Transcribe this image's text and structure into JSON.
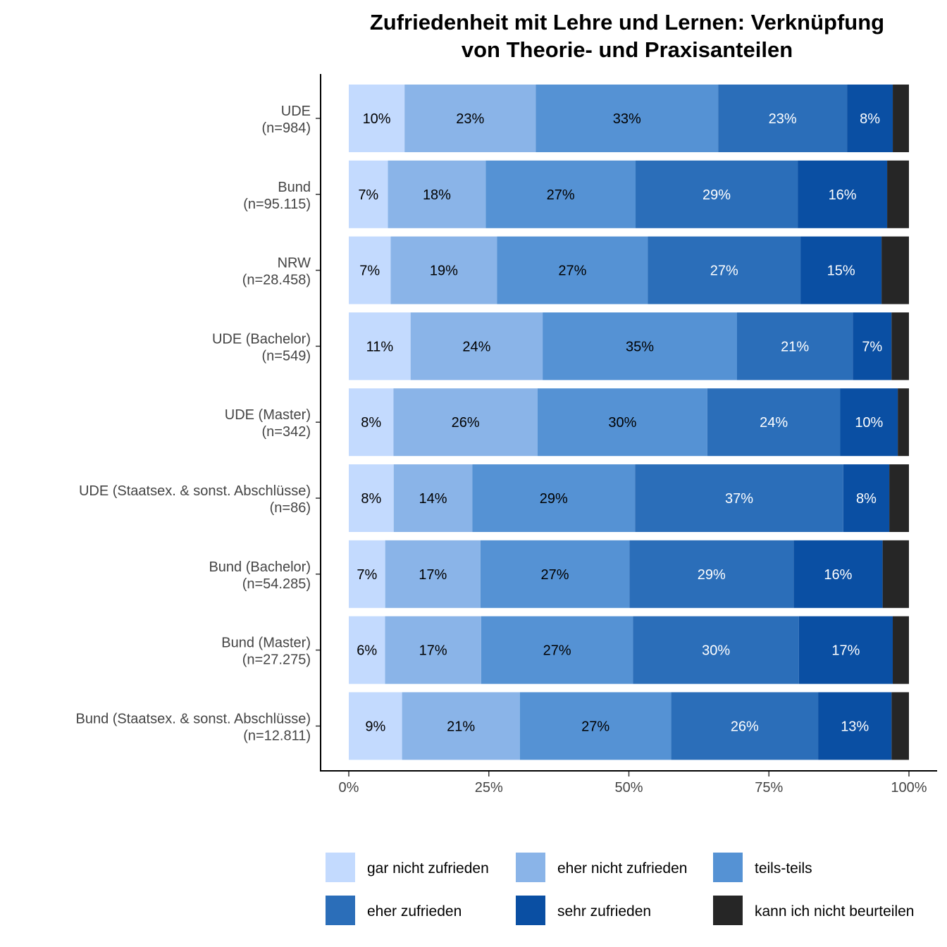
{
  "chart_data": {
    "type": "bar",
    "orientation": "horizontal",
    "stacked": true,
    "title_lines": [
      "Zufriedenheit mit Lehre und Lernen: Verknüpfung",
      "von Theorie- und Praxisanteilen"
    ],
    "xlabel": "",
    "ylabel": "",
    "xlim": [
      0,
      100
    ],
    "x_ticks": [
      "0%",
      "25%",
      "50%",
      "75%",
      "100%"
    ],
    "grid": false,
    "legend_position": "bottom",
    "categories": [
      {
        "name": "UDE",
        "n": "(n=984)"
      },
      {
        "name": "Bund",
        "n": "(n=95.115)"
      },
      {
        "name": "NRW",
        "n": "(n=28.458)"
      },
      {
        "name": "UDE (Bachelor)",
        "n": "(n=549)"
      },
      {
        "name": "UDE (Master)",
        "n": "(n=342)"
      },
      {
        "name": "UDE (Staatsex. & sonst. Abschlüsse)",
        "n": "(n=86)"
      },
      {
        "name": "Bund (Bachelor)",
        "n": "(n=54.285)"
      },
      {
        "name": "Bund (Master)",
        "n": "(n=27.275)"
      },
      {
        "name": "Bund (Staatsex. & sonst. Abschlüsse)",
        "n": "(n=12.811)"
      }
    ],
    "series": [
      {
        "name": "gar nicht zufrieden",
        "color": "#c3dafe",
        "label_color": "#000000",
        "values": [
          10,
          7,
          7.5,
          11,
          8,
          8,
          6.5,
          6.5,
          9.5
        ],
        "labels": [
          "10%",
          "7%",
          "7%",
          "11%",
          "8%",
          "8%",
          "7%",
          "6%",
          "9%"
        ]
      },
      {
        "name": "eher nicht zufrieden",
        "color": "#8ab4e8",
        "label_color": "#000000",
        "values": [
          23.5,
          17.5,
          19,
          23.5,
          25.8,
          14,
          17,
          17.2,
          21
        ],
        "labels": [
          "23%",
          "18%",
          "19%",
          "24%",
          "26%",
          "14%",
          "17%",
          "17%",
          "21%"
        ]
      },
      {
        "name": "teils-teils",
        "color": "#5592d4",
        "label_color": "#000000",
        "values": [
          32.7,
          26.8,
          27,
          34.6,
          30.4,
          29,
          26.6,
          27.2,
          27
        ],
        "labels": [
          "33%",
          "27%",
          "27%",
          "35%",
          "30%",
          "29%",
          "27%",
          "27%",
          "27%"
        ]
      },
      {
        "name": "eher zufrieden",
        "color": "#2b6eb9",
        "label_color": "#ffffff",
        "values": [
          23.1,
          29,
          27.3,
          20.6,
          23.8,
          37.1,
          29.3,
          29.7,
          26.2
        ],
        "labels": [
          "23%",
          "29%",
          "27%",
          "21%",
          "24%",
          "37%",
          "29%",
          "30%",
          "26%"
        ]
      },
      {
        "name": "sehr zufrieden",
        "color": "#0a4fa3",
        "label_color": "#ffffff",
        "values": [
          8.2,
          16,
          14.5,
          6.9,
          10.3,
          8.2,
          15.9,
          16.8,
          13.1
        ],
        "labels": [
          "8%",
          "16%",
          "15%",
          "7%",
          "10%",
          "8%",
          "16%",
          "17%",
          "13%"
        ]
      },
      {
        "name": "kann ich nicht beurteilen",
        "color": "#262626",
        "label_color": "#ffffff",
        "values": [
          2.9,
          3.9,
          4.9,
          3.1,
          2.0,
          3.5,
          4.7,
          2.9,
          3.1
        ],
        "labels": [
          "",
          "",
          "",
          "",
          "",
          "",
          "",
          "",
          ""
        ]
      }
    ]
  }
}
